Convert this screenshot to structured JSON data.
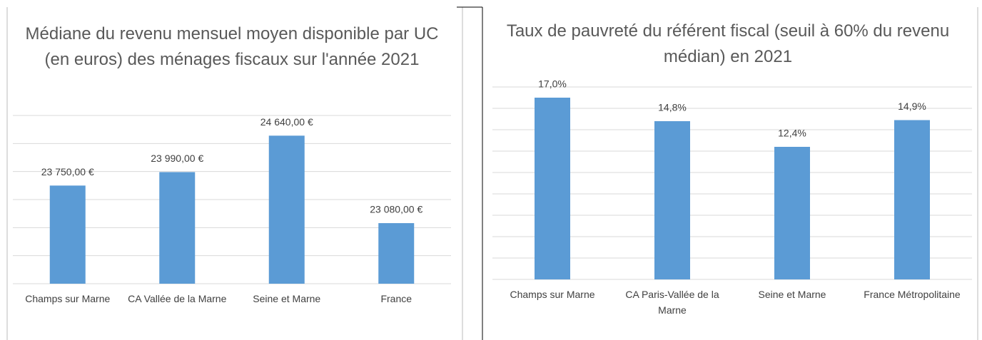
{
  "chart_data": [
    {
      "type": "bar",
      "title": "Médiane du revenu mensuel moyen disponible par UC (en euros) des ménages fiscaux sur l'année 2021",
      "categories": [
        "Champs sur Marne",
        "CA Vallée de la Marne",
        "Seine et Marne",
        "France"
      ],
      "values": [
        23750,
        23990,
        24640,
        23080
      ],
      "value_labels": [
        "23 750,00 €",
        "23 990,00 €",
        "24 640,00 €",
        "23 080,00 €"
      ],
      "color": "#5b9bd5",
      "ylim": [
        22000,
        25000
      ],
      "yticks": [
        22000,
        22500,
        23000,
        23500,
        24000,
        24500,
        25000
      ],
      "grid": true
    },
    {
      "type": "bar",
      "title": "Taux de pauvreté du référent fiscal (seuil à 60% du revenu médian) en 2021",
      "categories": [
        "Champs sur Marne",
        "CA Paris-Vallée de la Marne",
        "Seine et Marne",
        "France Métropolitaine"
      ],
      "values": [
        17.0,
        14.8,
        12.4,
        14.9
      ],
      "value_labels": [
        "17,0%",
        "14,8%",
        "12,4%",
        "14,9%"
      ],
      "color": "#5b9bd5",
      "ylim": [
        0,
        18
      ],
      "yticks": [
        0,
        2,
        4,
        6,
        8,
        10,
        12,
        14,
        16,
        18
      ],
      "grid": true
    }
  ]
}
